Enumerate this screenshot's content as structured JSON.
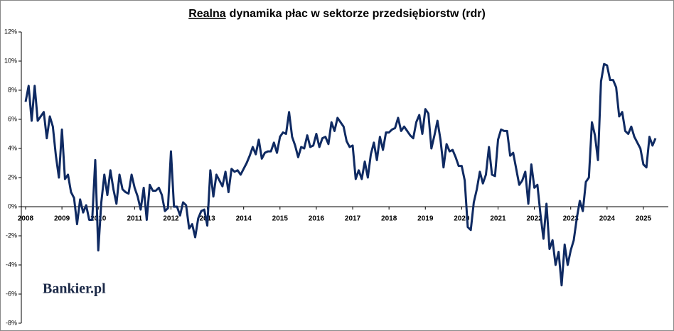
{
  "chart_data": {
    "type": "line",
    "title": {
      "underlined": "Realna",
      "rest": "dynamika płac w sektorze przedsiębiorstw (rdr)"
    },
    "watermark": "Bankier.pl",
    "color": "#0f2a62",
    "ylim": [
      -8,
      12
    ],
    "yticks": [
      {
        "value": -8,
        "label": "-8%"
      },
      {
        "value": -6,
        "label": "-6%"
      },
      {
        "value": -4,
        "label": "-4%"
      },
      {
        "value": -2,
        "label": "-2%"
      },
      {
        "value": 0,
        "label": "0%"
      },
      {
        "value": 2,
        "label": "2%"
      },
      {
        "value": 4,
        "label": "4%"
      },
      {
        "value": 6,
        "label": "6%"
      },
      {
        "value": 8,
        "label": "8%"
      },
      {
        "value": 10,
        "label": "10%"
      },
      {
        "value": 12,
        "label": "12%"
      }
    ],
    "categories": [
      "2008",
      null,
      null,
      null,
      null,
      null,
      null,
      null,
      null,
      null,
      null,
      null,
      "2009",
      null,
      null,
      null,
      null,
      null,
      null,
      null,
      null,
      null,
      null,
      null,
      "2010",
      null,
      null,
      null,
      null,
      null,
      null,
      null,
      null,
      null,
      null,
      null,
      "2011",
      null,
      null,
      null,
      null,
      null,
      null,
      null,
      null,
      null,
      null,
      null,
      "2012",
      null,
      null,
      null,
      null,
      null,
      null,
      null,
      null,
      null,
      null,
      null,
      "2013",
      null,
      null,
      null,
      null,
      null,
      null,
      null,
      null,
      null,
      null,
      null,
      "2014",
      null,
      null,
      null,
      null,
      null,
      null,
      null,
      null,
      null,
      null,
      null,
      "2015",
      null,
      null,
      null,
      null,
      null,
      null,
      null,
      null,
      null,
      null,
      null,
      "2016",
      null,
      null,
      null,
      null,
      null,
      null,
      null,
      null,
      null,
      null,
      null,
      "2017",
      null,
      null,
      null,
      null,
      null,
      null,
      null,
      null,
      null,
      null,
      null,
      "2018",
      null,
      null,
      null,
      null,
      null,
      null,
      null,
      null,
      null,
      null,
      null,
      "2019",
      null,
      null,
      null,
      null,
      null,
      null,
      null,
      null,
      null,
      null,
      null,
      "2020",
      null,
      null,
      null,
      null,
      null,
      null,
      null,
      null,
      null,
      null,
      null,
      "2021",
      null,
      null,
      null,
      null,
      null,
      null,
      null,
      null,
      null,
      null,
      null,
      "2022",
      null,
      null,
      null,
      null,
      null,
      null,
      null,
      null,
      null,
      null,
      null,
      "2023",
      null,
      null,
      null,
      null,
      null,
      null,
      null,
      null,
      null,
      null,
      null,
      "2024",
      null,
      null,
      null,
      null,
      null,
      null,
      null,
      null,
      null,
      null,
      null,
      "2025",
      null,
      null,
      null,
      null
    ],
    "values": [
      7.2,
      8.3,
      5.9,
      8.3,
      5.9,
      6.2,
      6.5,
      4.7,
      6.2,
      5.5,
      3.5,
      2.0,
      5.3,
      1.9,
      2.2,
      1.0,
      0.6,
      -1.2,
      0.5,
      -0.4,
      0.1,
      -0.9,
      -0.9,
      3.2,
      -3.0,
      0.3,
      2.2,
      0.8,
      2.5,
      1.2,
      0.2,
      2.2,
      1.2,
      1.0,
      0.9,
      2.2,
      1.3,
      0.7,
      -0.2,
      1.3,
      -0.9,
      1.5,
      1.1,
      1.1,
      1.3,
      0.8,
      -0.3,
      -0.1,
      3.8,
      0.0,
      0.0,
      -0.6,
      0.3,
      0.1,
      -1.5,
      -1.2,
      -2.1,
      -0.8,
      -0.3,
      -0.2,
      -1.3,
      2.5,
      0.7,
      2.2,
      1.8,
      1.4,
      2.4,
      1.0,
      2.6,
      2.4,
      2.5,
      2.2,
      2.6,
      3.0,
      3.5,
      4.1,
      3.6,
      4.6,
      3.3,
      3.7,
      3.8,
      3.8,
      4.4,
      3.7,
      4.8,
      5.1,
      5.0,
      6.5,
      4.8,
      4.2,
      3.4,
      4.1,
      4.0,
      4.9,
      4.1,
      4.2,
      5.0,
      4.1,
      4.7,
      4.8,
      4.3,
      5.8,
      5.2,
      6.1,
      5.8,
      5.5,
      4.5,
      4.1,
      4.2,
      1.9,
      2.5,
      1.9,
      3.1,
      2.0,
      3.6,
      4.4,
      3.2,
      4.8,
      3.9,
      5.1,
      5.1,
      5.3,
      5.4,
      6.1,
      5.2,
      5.5,
      5.2,
      4.9,
      4.7,
      5.8,
      6.3,
      5.0,
      6.7,
      6.4,
      4.0,
      4.9,
      5.9,
      4.6,
      2.7,
      4.3,
      3.8,
      3.9,
      3.4,
      2.8,
      2.8,
      1.8,
      -1.4,
      -1.6,
      0.3,
      1.2,
      2.4,
      1.6,
      2.2,
      4.1,
      2.2,
      2.1,
      4.6,
      5.3,
      5.2,
      5.2,
      3.5,
      3.7,
      2.6,
      1.5,
      1.8,
      2.4,
      0.2,
      2.9,
      1.3,
      1.5,
      -0.5,
      -2.2,
      0.2,
      -2.9,
      -2.3,
      -4.0,
      -3.1,
      -5.4,
      -2.6,
      -4.0,
      -3.0,
      -2.3,
      -0.8,
      0.4,
      -0.3,
      1.7,
      2.0,
      5.8,
      4.9,
      3.2,
      8.6,
      9.8,
      9.7,
      8.7,
      8.7,
      8.2,
      6.2,
      6.5,
      5.2,
      5.0,
      5.5,
      4.8,
      4.4,
      4.0,
      2.9,
      2.7,
      4.8,
      4.2,
      4.7
    ]
  }
}
